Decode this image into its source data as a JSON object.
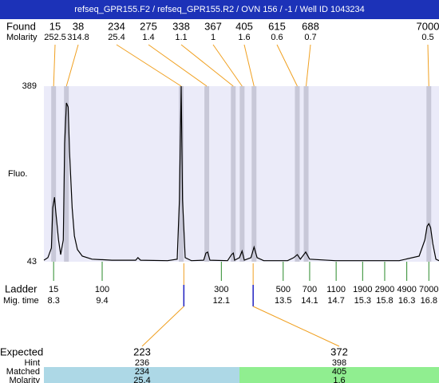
{
  "chart_data": {
    "type": "line",
    "title": "refseq_GPR155.F2 / refseq_GPR155.R2 / OVN 156 / -1 / Well ID 1043234",
    "y_label": "Fluo.",
    "ylim": [
      43,
      389
    ],
    "yticks": [
      43,
      389
    ],
    "xlim": [
      8.08,
      17.03
    ],
    "color": "#000000",
    "x": [
      8.08,
      8.17,
      8.25,
      8.28,
      8.32,
      8.35,
      8.41,
      8.46,
      8.52,
      8.55,
      8.59,
      8.63,
      8.66,
      8.72,
      8.77,
      8.84,
      8.95,
      9.17,
      9.62,
      10.16,
      10.21,
      10.27,
      10.88,
      11.1,
      11.15,
      11.19,
      11.22,
      11.28,
      11.42,
      11.7,
      11.75,
      11.79,
      11.84,
      12.24,
      12.33,
      12.37,
      12.4,
      12.51,
      12.57,
      12.62,
      12.77,
      12.84,
      12.91,
      13.06,
      13.6,
      13.74,
      13.82,
      13.89,
      14.01,
      14.1,
      14.68,
      16.13,
      16.58,
      16.71,
      16.76,
      16.8,
      16.84,
      16.89,
      16.96,
      17.03
    ],
    "values": [
      46,
      51,
      70,
      149,
      170,
      141,
      86,
      57,
      86,
      276,
      356,
      348,
      260,
      149,
      94,
      67,
      54,
      48,
      46,
      46,
      51,
      46,
      45,
      48,
      165,
      389,
      165,
      51,
      45,
      46,
      60,
      62,
      46,
      45,
      57,
      60,
      46,
      51,
      64,
      46,
      51,
      72,
      51,
      45,
      45,
      51,
      57,
      48,
      62,
      48,
      45,
      45,
      54,
      86,
      113,
      118,
      110,
      78,
      48,
      45
    ],
    "found": {
      "label": "Found",
      "molarity_label": "Molarity",
      "sizes": [
        15,
        38,
        234,
        275,
        338,
        367,
        405,
        615,
        688,
        7000
      ],
      "molarity": [
        252.5,
        314.8,
        25.4,
        1.4,
        1.1,
        1,
        1.6,
        0.6,
        0.7,
        0.5
      ],
      "x": [
        8.3,
        8.59,
        11.19,
        11.77,
        12.37,
        12.57,
        12.84,
        13.82,
        14.02,
        16.8
      ]
    },
    "ladder": {
      "label": "Ladder",
      "time_label": "Mig. time",
      "sizes": [
        15,
        100,
        300,
        500,
        700,
        1100,
        1900,
        2900,
        4900,
        7000
      ],
      "times": [
        8.3,
        9.4,
        12.1,
        13.5,
        14.1,
        14.7,
        15.3,
        15.8,
        16.3,
        16.8
      ]
    },
    "expected": {
      "label": "Expected",
      "hint_label": "Hint",
      "matched_label": "Matched",
      "molarity_label": "Molarity",
      "sizes": [
        223,
        372
      ],
      "hint": [
        236,
        398
      ],
      "matched": [
        234,
        405
      ],
      "molarity": [
        25.4,
        1.6
      ],
      "x": [
        11.25,
        12.82
      ]
    }
  }
}
